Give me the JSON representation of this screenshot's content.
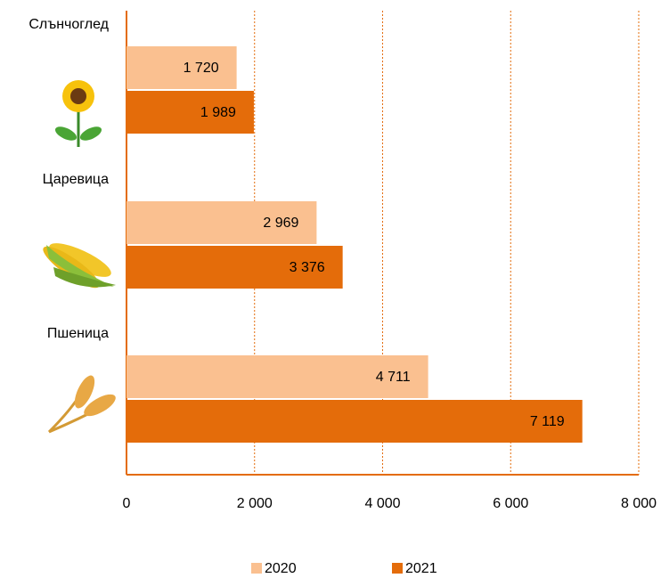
{
  "chart_data": {
    "type": "bar",
    "orientation": "horizontal",
    "categories": [
      "Слънчоглед",
      "Царевица",
      "Пшеница"
    ],
    "series": [
      {
        "name": "2020",
        "color": "#fac090",
        "values": [
          1720,
          2969,
          4711
        ],
        "value_labels": [
          "1 720",
          "2 969",
          "4 711"
        ]
      },
      {
        "name": "2021",
        "color": "#e46c0a",
        "values": [
          1989,
          3376,
          7119
        ],
        "value_labels": [
          "1 989",
          "3 376",
          "7 119"
        ]
      }
    ],
    "xlim": [
      0,
      8000
    ],
    "xticks": [
      0,
      {
        "value": 2000,
        "label": "2 000"
      },
      {
        "value": 4000,
        "label": "4 000"
      },
      {
        "value": 6000,
        "label": "6 000"
      },
      {
        "value": 8000,
        "label": "8 000"
      }
    ],
    "grid": true,
    "legend": "bottom"
  }
}
